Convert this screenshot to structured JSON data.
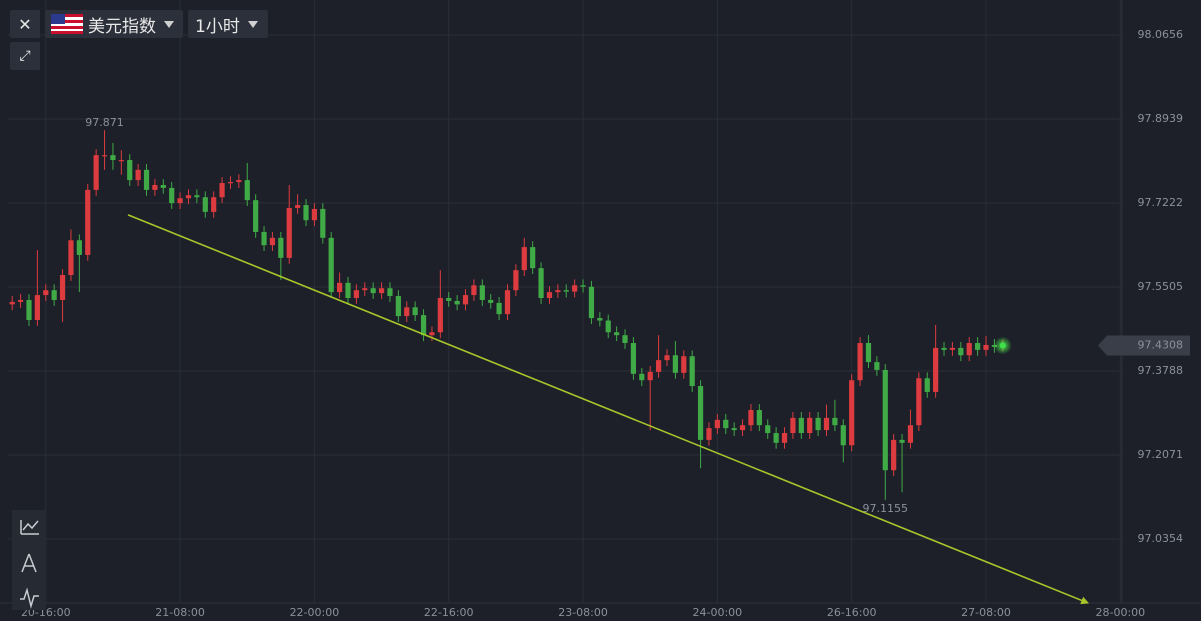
{
  "ui": {
    "symbol": "美元指数",
    "interval": "1小时"
  },
  "chart_data": {
    "type": "candlestick",
    "up_color": "#dc3b3f",
    "down_color": "#3faa46",
    "grid": true,
    "ylim": [
      96.9046,
      98.1228
    ],
    "yticks": [
      98.0656,
      97.8939,
      97.7222,
      97.5505,
      97.3788,
      97.2071,
      97.0354
    ],
    "xlim": [
      -0.5,
      132.2
    ],
    "xticks": [
      {
        "value": 4,
        "label": "20-16:00"
      },
      {
        "value": 20,
        "label": "21-08:00"
      },
      {
        "value": 36,
        "label": "22-00:00"
      },
      {
        "value": 52,
        "label": "22-16:00"
      },
      {
        "value": 68,
        "label": "23-08:00"
      },
      {
        "value": 84,
        "label": "24-00:00"
      },
      {
        "value": 100,
        "label": "26-16:00"
      },
      {
        "value": 116,
        "label": "27-08:00"
      },
      {
        "value": 132,
        "label": "28-00:00"
      }
    ],
    "open": [
      97.515,
      97.52,
      97.524,
      97.483,
      97.534,
      97.544,
      97.524,
      97.575,
      97.646,
      97.616,
      97.749,
      97.82,
      97.82,
      97.81,
      97.81,
      97.769,
      97.79,
      97.749,
      97.759,
      97.753,
      97.722,
      97.732,
      97.738,
      97.734,
      97.704,
      97.734,
      97.763,
      97.765,
      97.769,
      97.728,
      97.663,
      97.636,
      97.651,
      97.61,
      97.712,
      97.718,
      97.687,
      97.71,
      97.651,
      97.54,
      97.559,
      97.528,
      97.544,
      97.548,
      97.538,
      97.548,
      97.532,
      97.491,
      97.509,
      97.493,
      97.452,
      97.458,
      97.528,
      97.522,
      97.515,
      97.534,
      97.554,
      97.524,
      97.518,
      97.495,
      97.544,
      97.585,
      97.632,
      97.589,
      97.528,
      97.54,
      97.544,
      97.541,
      97.554,
      97.551,
      97.487,
      97.482,
      97.458,
      97.452,
      97.436,
      97.373,
      97.36,
      97.377,
      97.401,
      97.411,
      97.375,
      97.409,
      97.348,
      97.238,
      97.262,
      97.279,
      97.262,
      97.258,
      97.268,
      97.299,
      97.268,
      97.252,
      97.232,
      97.252,
      97.283,
      97.252,
      97.283,
      97.258,
      97.283,
      97.268,
      97.227,
      97.36,
      97.436,
      97.397,
      97.381,
      97.176,
      97.238,
      97.232,
      97.268,
      97.364,
      97.336,
      97.426,
      97.422,
      97.426,
      97.411,
      97.436,
      97.422,
      97.432,
      97.428
    ],
    "close": [
      97.52,
      97.524,
      97.483,
      97.534,
      97.544,
      97.524,
      97.575,
      97.646,
      97.616,
      97.749,
      97.82,
      97.82,
      97.81,
      97.81,
      97.769,
      97.79,
      97.749,
      97.759,
      97.753,
      97.722,
      97.732,
      97.738,
      97.734,
      97.704,
      97.734,
      97.763,
      97.765,
      97.769,
      97.728,
      97.663,
      97.636,
      97.651,
      97.61,
      97.712,
      97.718,
      97.687,
      97.71,
      97.651,
      97.54,
      97.559,
      97.528,
      97.544,
      97.548,
      97.538,
      97.548,
      97.532,
      97.491,
      97.509,
      97.493,
      97.452,
      97.458,
      97.528,
      97.522,
      97.515,
      97.534,
      97.554,
      97.524,
      97.518,
      97.495,
      97.544,
      97.585,
      97.632,
      97.589,
      97.528,
      97.54,
      97.544,
      97.541,
      97.554,
      97.551,
      97.487,
      97.482,
      97.458,
      97.452,
      97.436,
      97.373,
      97.36,
      97.377,
      97.401,
      97.411,
      97.375,
      97.409,
      97.348,
      97.238,
      97.262,
      97.279,
      97.262,
      97.258,
      97.268,
      97.299,
      97.268,
      97.252,
      97.232,
      97.252,
      97.283,
      97.252,
      97.283,
      97.258,
      97.283,
      97.268,
      97.227,
      97.36,
      97.436,
      97.397,
      97.381,
      97.176,
      97.238,
      97.232,
      97.268,
      97.364,
      97.336,
      97.426,
      97.422,
      97.426,
      97.411,
      97.436,
      97.422,
      97.432,
      97.428,
      97.4308
    ],
    "high": [
      97.532,
      97.536,
      97.536,
      97.626,
      97.556,
      97.556,
      97.587,
      97.668,
      97.658,
      97.761,
      97.832,
      97.871,
      97.845,
      97.83,
      97.822,
      97.802,
      97.802,
      97.771,
      97.771,
      97.765,
      97.744,
      97.75,
      97.75,
      97.746,
      97.746,
      97.775,
      97.777,
      97.781,
      97.804,
      97.74,
      97.675,
      97.663,
      97.663,
      97.759,
      97.74,
      97.73,
      97.722,
      97.722,
      97.663,
      97.58,
      97.571,
      97.556,
      97.56,
      97.56,
      97.56,
      97.56,
      97.544,
      97.521,
      97.521,
      97.505,
      97.47,
      97.585,
      97.54,
      97.534,
      97.546,
      97.566,
      97.566,
      97.536,
      97.53,
      97.556,
      97.597,
      97.651,
      97.644,
      97.601,
      97.552,
      97.556,
      97.556,
      97.566,
      97.566,
      97.563,
      97.499,
      97.494,
      97.47,
      97.464,
      97.448,
      97.385,
      97.389,
      97.452,
      97.423,
      97.44,
      97.421,
      97.421,
      97.36,
      97.274,
      97.291,
      97.291,
      97.274,
      97.28,
      97.311,
      97.311,
      97.28,
      97.264,
      97.264,
      97.295,
      97.295,
      97.295,
      97.295,
      97.31,
      97.32,
      97.28,
      97.372,
      97.448,
      97.452,
      97.409,
      97.393,
      97.25,
      97.25,
      97.3,
      97.376,
      97.376,
      97.473,
      97.438,
      97.438,
      97.438,
      97.448,
      97.448,
      97.45,
      97.444,
      97.443
    ],
    "low": [
      97.503,
      97.508,
      97.471,
      97.471,
      97.522,
      97.512,
      97.479,
      97.563,
      97.54,
      97.604,
      97.737,
      97.79,
      97.79,
      97.78,
      97.757,
      97.757,
      97.737,
      97.737,
      97.741,
      97.71,
      97.71,
      97.72,
      97.722,
      97.692,
      97.692,
      97.722,
      97.751,
      97.753,
      97.716,
      97.651,
      97.624,
      97.624,
      97.565,
      97.598,
      97.7,
      97.675,
      97.675,
      97.639,
      97.528,
      97.528,
      97.516,
      97.516,
      97.532,
      97.526,
      97.526,
      97.52,
      97.479,
      97.479,
      97.481,
      97.44,
      97.44,
      97.446,
      97.51,
      97.503,
      97.503,
      97.522,
      97.512,
      97.506,
      97.483,
      97.483,
      97.532,
      97.573,
      97.577,
      97.516,
      97.516,
      97.528,
      97.529,
      97.529,
      97.539,
      97.475,
      97.47,
      97.446,
      97.44,
      97.424,
      97.361,
      97.348,
      97.258,
      97.365,
      97.389,
      97.363,
      97.363,
      97.336,
      97.18,
      97.226,
      97.25,
      97.25,
      97.246,
      97.246,
      97.256,
      97.256,
      97.24,
      97.22,
      97.22,
      97.24,
      97.24,
      97.24,
      97.246,
      97.246,
      97.256,
      97.192,
      97.215,
      97.348,
      97.385,
      97.369,
      97.1155,
      97.164,
      97.131,
      97.22,
      97.256,
      97.324,
      97.324,
      97.41,
      97.41,
      97.399,
      97.399,
      97.41,
      97.41,
      97.416,
      97.419
    ],
    "trendline": {
      "x": [
        13.8,
        128.1
      ],
      "y": [
        97.698,
        96.905
      ],
      "color": "#a8c62a"
    }
  }
}
